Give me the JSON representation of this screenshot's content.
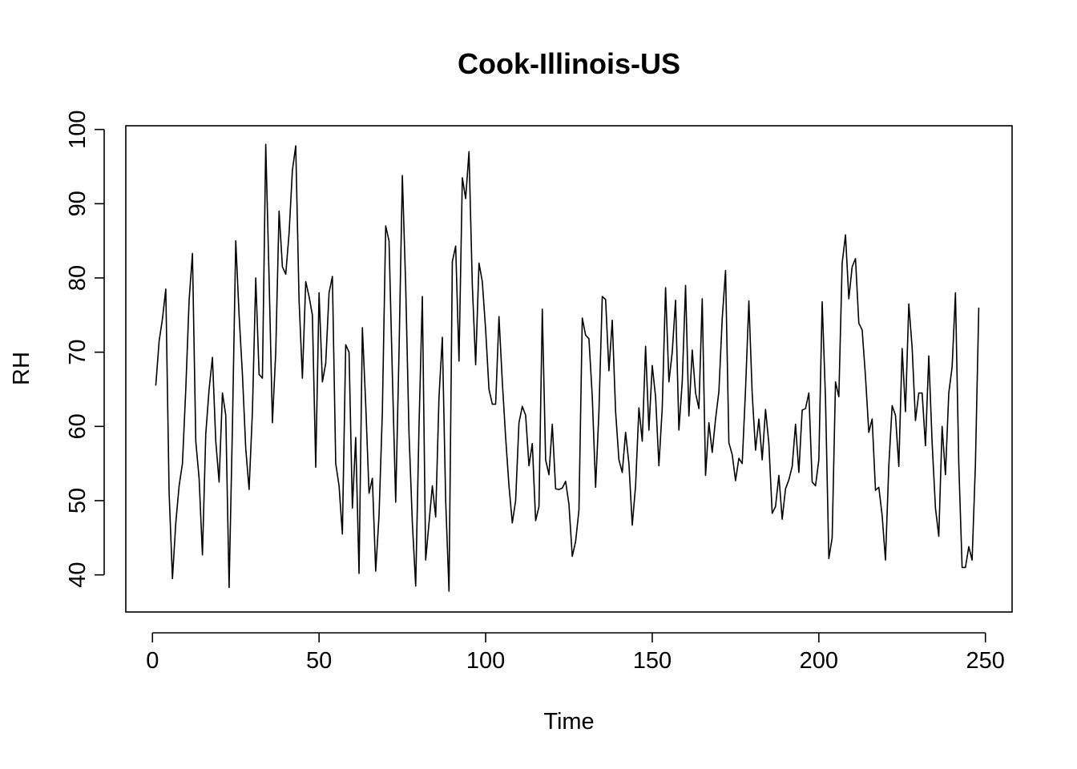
{
  "chart_data": {
    "type": "line",
    "title": "Cook-Illinois-US",
    "xlabel": "Time",
    "ylabel": "RH",
    "xlim": [
      -8,
      258
    ],
    "ylim": [
      35,
      100.5
    ],
    "xticks": [
      0,
      50,
      100,
      150,
      200,
      250
    ],
    "yticks": [
      40,
      50,
      60,
      70,
      80,
      90,
      100
    ],
    "grid": false,
    "legend": "none",
    "line_color": "#000000",
    "series": [
      {
        "x": [
          1,
          2,
          3,
          4,
          5,
          6,
          7,
          8,
          9,
          10,
          11,
          12,
          13,
          14,
          15,
          16,
          17,
          18,
          19,
          20,
          21,
          22,
          23,
          24,
          25,
          26,
          27,
          28,
          29,
          30,
          31,
          32,
          33,
          34,
          35,
          36,
          37,
          38,
          39,
          40,
          41,
          42,
          43,
          44,
          45,
          46,
          47,
          48,
          49,
          50,
          51,
          52,
          53,
          54,
          55,
          56,
          57,
          58,
          59,
          60,
          61,
          62,
          63,
          64,
          65,
          66,
          67,
          68,
          69,
          70,
          71,
          72,
          73,
          74,
          75,
          76,
          77,
          78,
          79,
          80,
          81,
          82,
          83,
          84,
          85,
          86,
          87,
          88,
          89,
          90,
          91,
          92,
          93,
          94,
          95,
          96,
          97,
          98,
          99,
          100,
          101,
          102,
          103,
          104,
          105,
          106,
          107,
          108,
          109,
          110,
          111,
          112,
          113,
          114,
          115,
          116,
          117,
          118,
          119,
          120,
          121,
          122,
          123,
          124,
          125,
          126,
          127,
          128,
          129,
          130,
          131,
          132,
          133,
          134,
          135,
          136,
          137,
          138,
          139,
          140,
          141,
          142,
          143,
          144,
          145,
          146,
          147,
          148,
          149,
          150,
          151,
          152,
          153,
          154,
          155,
          156,
          157,
          158,
          159,
          160,
          161,
          162,
          163,
          164,
          165,
          166,
          167,
          168,
          169,
          170,
          171,
          172,
          173,
          174,
          175,
          176,
          177,
          178,
          179,
          180,
          181,
          182,
          183,
          184,
          185,
          186,
          187,
          188,
          189,
          190,
          191,
          192,
          193,
          194,
          195,
          196,
          197,
          198,
          199,
          200,
          201,
          202,
          203,
          204,
          205,
          206,
          207,
          208,
          209,
          210,
          211,
          212,
          213,
          214,
          215,
          216,
          217,
          218,
          219,
          220,
          221,
          222,
          223,
          224,
          225,
          226,
          227,
          228,
          229,
          230,
          231,
          232,
          233,
          234,
          235,
          236,
          237,
          238,
          239,
          240,
          241,
          242,
          243,
          244,
          245,
          246,
          247,
          248
        ],
        "values": [
          65.5,
          71.5,
          74.5,
          78.5,
          51,
          39.5,
          47,
          52,
          55,
          65,
          77,
          83.3,
          58,
          53,
          42.7,
          59,
          65,
          69.3,
          58,
          52.5,
          64.5,
          61.5,
          38.3,
          60,
          85,
          75,
          67,
          57,
          51.5,
          62,
          80,
          67,
          66.5,
          98,
          80,
          60.5,
          70,
          89,
          81.5,
          80.5,
          86,
          94.5,
          97.8,
          77,
          66.5,
          79.5,
          77.5,
          75,
          54.5,
          78,
          66,
          68.5,
          78,
          80.2,
          55,
          52,
          45.5,
          71,
          70,
          49,
          58.5,
          40.2,
          73.3,
          63,
          51,
          53,
          40.5,
          48,
          62,
          87,
          85,
          67,
          49.8,
          70,
          93.8,
          79,
          59,
          47,
          38.5,
          60,
          77.5,
          42,
          47,
          52,
          47.8,
          64,
          72,
          50,
          37.8,
          82.2,
          84.3,
          68.8,
          93.5,
          90.7,
          97,
          79,
          68.3,
          82,
          79.5,
          73,
          65,
          63,
          63,
          74.8,
          66,
          58.5,
          52,
          47,
          50,
          60.5,
          62.7,
          61.5,
          54.7,
          57.7,
          47.3,
          49.2,
          75.8,
          55.5,
          53.5,
          60.3,
          51.6,
          51.5,
          51.7,
          52.6,
          49.5,
          42.5,
          44.5,
          48.7,
          74.6,
          72.3,
          71.8,
          64,
          51.8,
          62,
          77.5,
          77.1,
          67.5,
          74.3,
          62,
          55.5,
          53.8,
          59.2,
          55,
          46.7,
          52,
          62.5,
          58,
          70.8,
          59.5,
          68.2,
          64,
          54.7,
          62.5,
          78.7,
          66,
          70,
          77,
          59.5,
          66,
          79,
          61.4,
          70.3,
          64.5,
          62.4,
          77.2,
          53.4,
          60.5,
          56.5,
          61,
          64.7,
          74.5,
          81,
          57.8,
          56.2,
          52.7,
          55.7,
          55,
          65,
          76.9,
          64.4,
          56.8,
          61,
          55.5,
          62.3,
          57.7,
          48.3,
          49.2,
          53.4,
          47.5,
          51.6,
          52.8,
          54.6,
          60.3,
          53.8,
          62.2,
          62.4,
          64.5,
          52.5,
          52,
          55.5,
          76.8,
          63.7,
          42.2,
          45,
          66,
          64,
          82,
          85.8,
          77.2,
          81.5,
          82.6,
          73.9,
          73,
          66.7,
          59.2,
          61,
          51.4,
          51.8,
          48,
          42,
          54.7,
          62.8,
          61.5,
          54.6,
          70.5,
          62,
          76.5,
          70.6,
          60.8,
          64.5,
          64.5,
          57.4,
          69.5,
          57.8,
          49,
          45.2,
          60,
          53.5,
          64.5,
          68,
          78,
          55,
          41,
          41,
          43.8,
          42,
          55,
          76
        ]
      }
    ]
  }
}
